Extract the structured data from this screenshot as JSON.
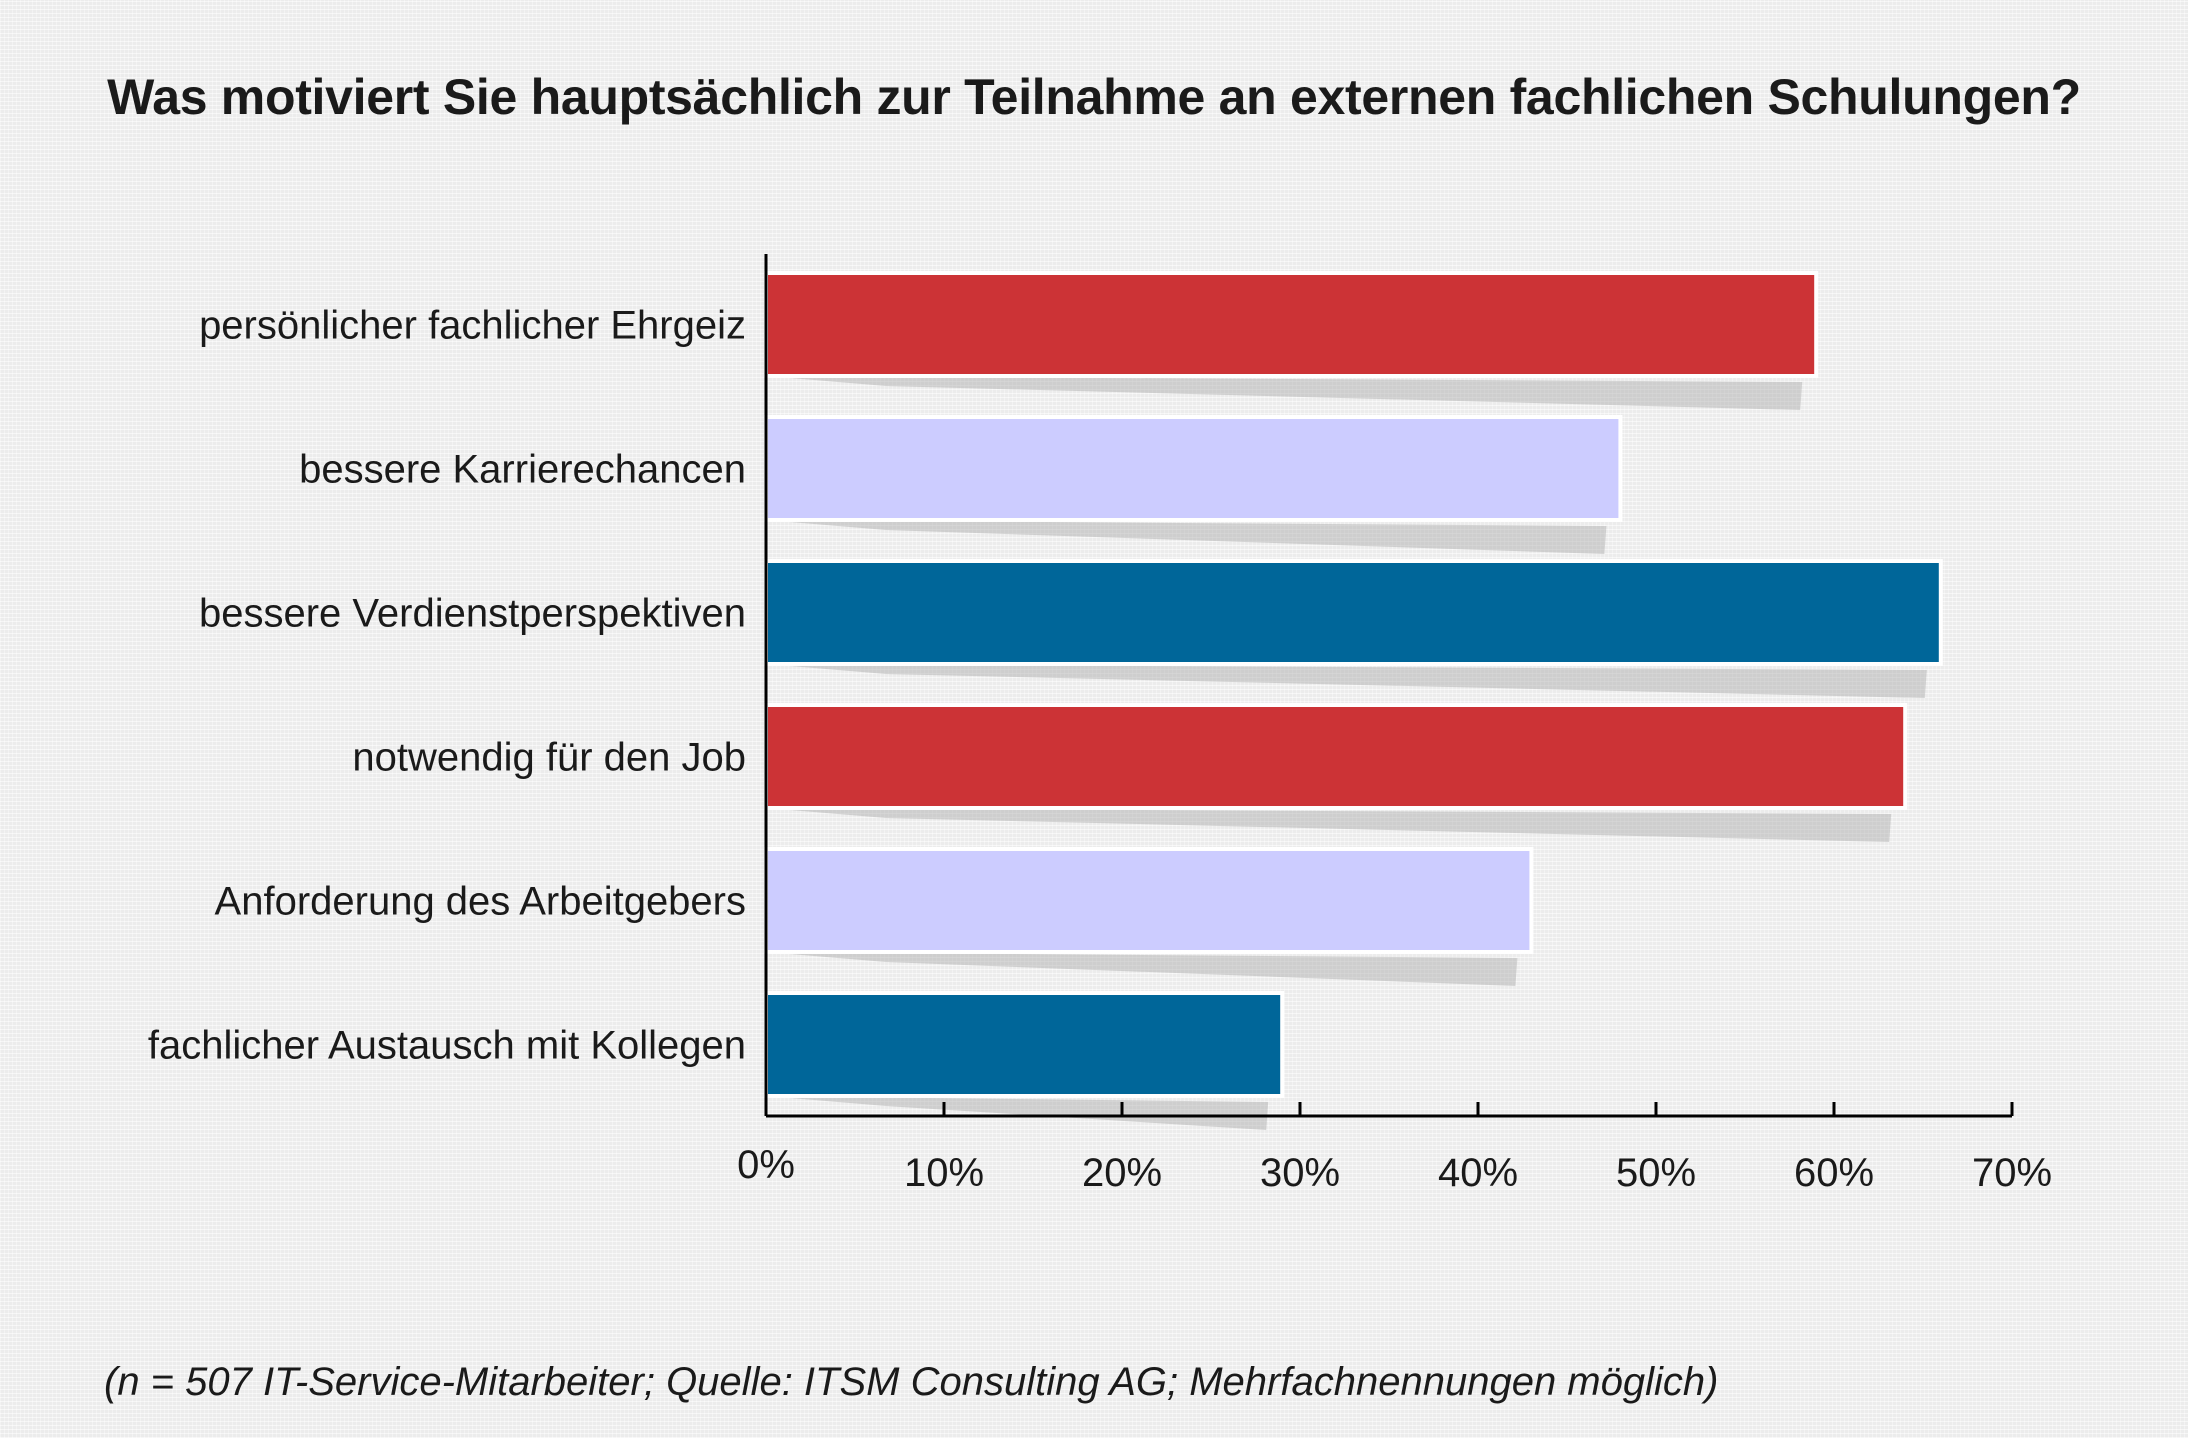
{
  "chart_data": {
    "type": "bar",
    "orientation": "horizontal",
    "title": "Was motiviert Sie hauptsächlich zur Teilnahme an externen fachlichen Schulungen?",
    "categories": [
      "persönlicher fachlicher Ehrgeiz",
      "bessere Karrierechancen",
      "bessere Verdienstperspektiven",
      "notwendig für den Job",
      "Anforderung des Arbeitgebers",
      "fachlicher Austausch mit Kollegen"
    ],
    "values": [
      59,
      48,
      66,
      64,
      43,
      29
    ],
    "colors": [
      "#cc3336",
      "#ccccff",
      "#006699",
      "#cc3336",
      "#ccccff",
      "#006699"
    ],
    "xlim": [
      0,
      70
    ],
    "ticks": [
      0,
      10,
      20,
      30,
      40,
      50,
      60,
      70
    ],
    "tick_labels": [
      "0%",
      "10%",
      "20%",
      "30%",
      "40%",
      "50%",
      "60%",
      "70%"
    ],
    "xlabel": "",
    "ylabel": "",
    "grid": false,
    "legend": "none"
  },
  "footnote": "(n = 507 IT-Service-Mitarbeiter; Quelle: ITSM Consulting AG; Mehrfachnennungen möglich)"
}
